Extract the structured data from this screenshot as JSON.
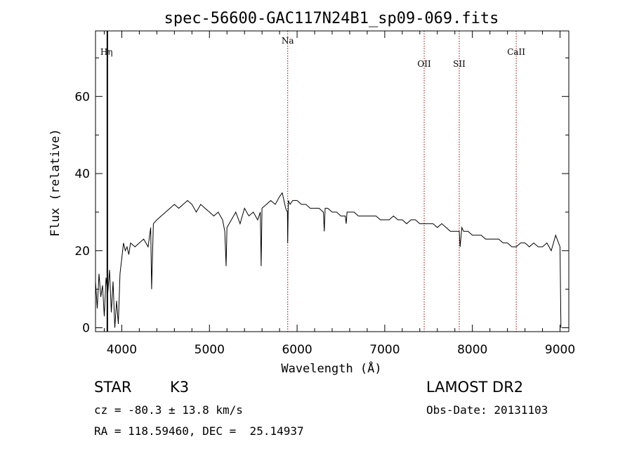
{
  "chart_data": {
    "type": "line",
    "title": "spec-56600-GAC117N24B1_sp09-069.fits",
    "xlabel": "Wavelength (Å)",
    "ylabel": "Flux (relative)",
    "xlim": [
      3700,
      9100
    ],
    "ylim": [
      -1,
      77
    ],
    "xticks": [
      4000,
      5000,
      6000,
      7000,
      8000,
      9000
    ],
    "yticks": [
      0,
      20,
      40,
      60
    ],
    "grid": false,
    "legend": "none",
    "line_color": "#000000",
    "marker_color": "#aa0000",
    "lines": [
      {
        "label": "Hη",
        "x": 3835,
        "style": "solid",
        "color": "#000000"
      },
      {
        "label": "Na",
        "x": 5893,
        "style": "dotted",
        "color": "#aa0000"
      },
      {
        "label": "OII",
        "x": 7450,
        "style": "dotted",
        "color": "#aa0000"
      },
      {
        "label": "SII",
        "x": 7850,
        "style": "dotted",
        "color": "#aa0000"
      },
      {
        "label": "CaII",
        "x": 8500,
        "style": "dotted",
        "color": "#aa0000"
      }
    ],
    "series": [
      {
        "x": [
          3700,
          3720,
          3740,
          3760,
          3780,
          3800,
          3820,
          3840,
          3860,
          3880,
          3900,
          3920,
          3940,
          3960,
          3980,
          4000,
          4020,
          4040,
          4060,
          4080,
          4100,
          4150,
          4200,
          4250,
          4300,
          4330,
          4340,
          4360,
          4400,
          4450,
          4500,
          4550,
          4600,
          4650,
          4700,
          4750,
          4800,
          4850,
          4900,
          4950,
          5000,
          5050,
          5100,
          5150,
          5175,
          5190,
          5200,
          5250,
          5300,
          5350,
          5400,
          5450,
          5500,
          5550,
          5580,
          5590,
          5600,
          5650,
          5700,
          5750,
          5800,
          5830,
          5850,
          5870,
          5890,
          5893,
          5900,
          5920,
          5950,
          6000,
          6050,
          6100,
          6150,
          6200,
          6250,
          6300,
          6310,
          6320,
          6350,
          6400,
          6450,
          6500,
          6550,
          6560,
          6570,
          6600,
          6650,
          6700,
          6750,
          6800,
          6850,
          6900,
          6950,
          7000,
          7050,
          7100,
          7150,
          7200,
          7250,
          7300,
          7350,
          7400,
          7450,
          7500,
          7550,
          7600,
          7650,
          7700,
          7750,
          7800,
          7850,
          7860,
          7880,
          7900,
          7950,
          8000,
          8050,
          8100,
          8150,
          8200,
          8250,
          8300,
          8350,
          8400,
          8450,
          8500,
          8550,
          8600,
          8650,
          8700,
          8750,
          8800,
          8850,
          8900,
          8950,
          9000,
          9010
        ],
        "y": [
          12,
          5,
          14,
          8,
          11,
          3,
          13,
          9,
          15,
          4,
          12,
          0,
          7,
          1,
          14,
          18,
          22,
          20,
          21,
          19,
          22,
          21,
          22,
          23,
          21,
          26,
          10,
          27,
          28,
          29,
          30,
          31,
          32,
          31,
          32,
          33,
          32,
          30,
          32,
          31,
          30,
          29,
          30,
          28,
          25,
          16,
          26,
          28,
          30,
          27,
          31,
          29,
          30,
          28,
          30,
          16,
          31,
          32,
          33,
          32,
          34,
          35,
          33,
          31,
          30,
          22,
          33,
          32,
          33,
          33,
          32,
          32,
          31,
          31,
          31,
          30,
          25,
          31,
          31,
          30,
          30,
          29,
          29,
          27,
          30,
          30,
          30,
          29,
          29,
          29,
          29,
          29,
          28,
          28,
          28,
          29,
          28,
          28,
          27,
          28,
          28,
          27,
          27,
          27,
          27,
          26,
          27,
          26,
          25,
          25,
          25,
          21,
          26,
          25,
          25,
          24,
          24,
          24,
          23,
          23,
          23,
          23,
          22,
          22,
          21,
          21,
          22,
          22,
          21,
          22,
          21,
          21,
          22,
          20,
          24,
          21,
          0
        ]
      }
    ]
  },
  "info": {
    "class_label": "STAR",
    "subclass": "K3",
    "survey": "LAMOST DR2",
    "cz": "cz = -80.3 ± 13.8 km/s",
    "obs_date": "Obs-Date: 20131103",
    "radec": "RA = 118.59460, DEC =  25.14937"
  }
}
